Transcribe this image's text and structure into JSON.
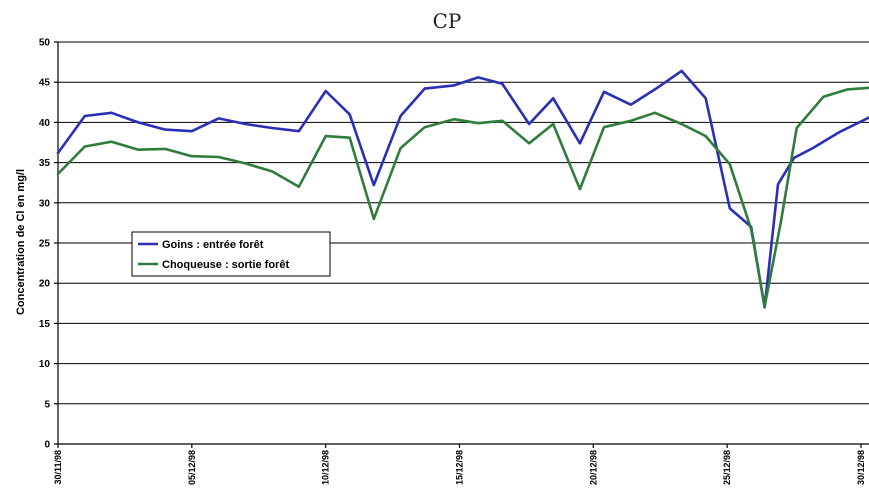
{
  "chart_data": {
    "type": "line",
    "title": "CP",
    "ylabel": "Concentration  de Cl en mg/l",
    "xlabel": "",
    "ylim": [
      0,
      50
    ],
    "yticks": [
      0,
      5,
      10,
      15,
      20,
      25,
      30,
      35,
      40,
      45,
      50
    ],
    "xlim": [
      0,
      30.3
    ],
    "xticks": [
      {
        "day": 0,
        "label": "30/11/98"
      },
      {
        "day": 5,
        "label": "05/12/98"
      },
      {
        "day": 10,
        "label": "10/12/98"
      },
      {
        "day": 15,
        "label": "15/12/98"
      },
      {
        "day": 20,
        "label": "20/12/98"
      },
      {
        "day": 25,
        "label": "25/12/98"
      },
      {
        "day": 30,
        "label": "30/12/98"
      }
    ],
    "grid": true,
    "legend_position": "middle-left",
    "colors": {
      "goins": "#2b2fb5",
      "choqueuse": "#2e7d3a"
    },
    "series": [
      {
        "name": "Goins : entrée forêt",
        "color": "#2b2fb5",
        "x": [
          0,
          1,
          2,
          3,
          4,
          5,
          6,
          7,
          8,
          9,
          10,
          10.9,
          11.8,
          12.8,
          13.7,
          14.8,
          15.7,
          16.6,
          17.6,
          18.5,
          19.5,
          20.4,
          21.4,
          22.3,
          23.3,
          24.2,
          25.1,
          25.9,
          26.4,
          26.9,
          27.5,
          28.2,
          29.2,
          30.3
        ],
        "values": [
          36.2,
          40.8,
          41.2,
          40.0,
          39.1,
          38.9,
          40.5,
          39.8,
          39.3,
          38.9,
          43.9,
          41.0,
          32.2,
          40.8,
          44.2,
          44.6,
          45.6,
          44.8,
          39.8,
          43.0,
          37.4,
          43.8,
          42.2,
          44.1,
          46.4,
          43.0,
          29.3,
          27.0,
          17.0,
          32.3,
          35.6,
          36.8,
          38.8,
          40.6
        ]
      },
      {
        "name": "Choqueuse : sortie forêt",
        "color": "#2e7d3a",
        "x": [
          0,
          1,
          2,
          3,
          4,
          5,
          6,
          7,
          8,
          9,
          10,
          10.9,
          11.8,
          12.8,
          13.7,
          14.8,
          15.7,
          16.6,
          17.6,
          18.5,
          19.5,
          20.4,
          21.4,
          22.3,
          23.3,
          24.2,
          25.1,
          25.9,
          26.4,
          27.0,
          27.6,
          28.6,
          29.5,
          30.3
        ],
        "values": [
          33.6,
          37.0,
          37.6,
          36.6,
          36.7,
          35.8,
          35.7,
          34.9,
          33.9,
          32.0,
          38.3,
          38.1,
          28.0,
          36.8,
          39.4,
          40.4,
          39.9,
          40.2,
          37.4,
          39.8,
          31.7,
          39.4,
          40.2,
          41.2,
          39.8,
          38.3,
          34.8,
          26.7,
          17.1,
          27.5,
          39.3,
          43.2,
          44.1,
          44.3
        ]
      }
    ]
  }
}
